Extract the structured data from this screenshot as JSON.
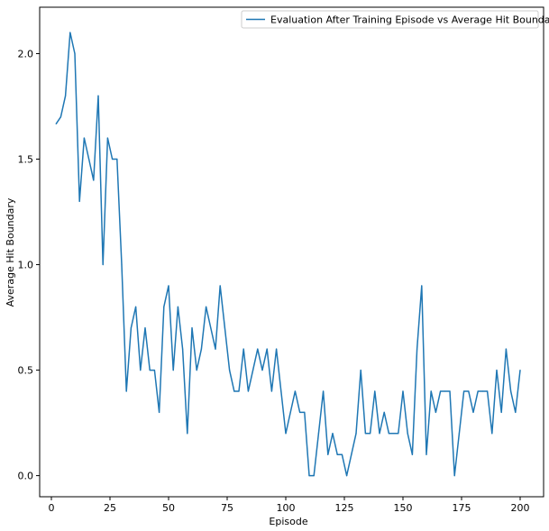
{
  "chart_data": {
    "type": "line",
    "title": "",
    "xlabel": "Episode",
    "ylabel": "Average Hit Boundary",
    "xlim": [
      -5,
      210
    ],
    "ylim": [
      -0.1,
      2.22
    ],
    "xticks": [
      0,
      25,
      50,
      75,
      100,
      125,
      150,
      175,
      200
    ],
    "xtick_labels": [
      "0",
      "25",
      "50",
      "75",
      "100",
      "125",
      "150",
      "175",
      "200"
    ],
    "yticks": [
      0.0,
      0.5,
      1.0,
      1.5,
      2.0
    ],
    "ytick_labels": [
      "0.0",
      "0.5",
      "1.0",
      "1.5",
      "2.0"
    ],
    "grid": false,
    "legend_position": "top-right",
    "series": [
      {
        "name": "Evaluation After Training Episode vs Average Hit Boundary",
        "color": "#1f77b4",
        "x": [
          2,
          4,
          6,
          8,
          10,
          12,
          14,
          16,
          18,
          20,
          22,
          24,
          26,
          28,
          30,
          32,
          34,
          36,
          38,
          40,
          42,
          44,
          46,
          48,
          50,
          52,
          54,
          56,
          58,
          60,
          62,
          64,
          66,
          68,
          70,
          72,
          74,
          76,
          78,
          80,
          82,
          84,
          86,
          88,
          90,
          92,
          94,
          96,
          98,
          100,
          102,
          104,
          106,
          108,
          110,
          112,
          114,
          116,
          118,
          120,
          122,
          124,
          126,
          128,
          130,
          132,
          134,
          136,
          138,
          140,
          142,
          144,
          146,
          148,
          150,
          152,
          154,
          156,
          158,
          160,
          162,
          164,
          166,
          168,
          170,
          172,
          174,
          176,
          178,
          180,
          182,
          184,
          186,
          188,
          190,
          192,
          194,
          196,
          198,
          200
        ],
        "y": [
          1.667,
          1.7,
          1.8,
          2.1,
          2.0,
          1.3,
          1.6,
          1.5,
          1.4,
          1.8,
          1.0,
          1.6,
          1.5,
          1.5,
          1.0,
          0.4,
          0.7,
          0.8,
          0.5,
          0.7,
          0.5,
          0.5,
          0.3,
          0.8,
          0.9,
          0.5,
          0.8,
          0.6,
          0.2,
          0.7,
          0.5,
          0.6,
          0.8,
          0.7,
          0.6,
          0.9,
          0.7,
          0.5,
          0.4,
          0.4,
          0.6,
          0.4,
          0.5,
          0.6,
          0.5,
          0.6,
          0.4,
          0.6,
          0.4,
          0.2,
          0.3,
          0.4,
          0.3,
          0.3,
          0.0,
          0.0,
          0.2,
          0.4,
          0.1,
          0.2,
          0.1,
          0.1,
          0.0,
          0.1,
          0.2,
          0.5,
          0.2,
          0.2,
          0.4,
          0.2,
          0.3,
          0.2,
          0.2,
          0.2,
          0.4,
          0.2,
          0.1,
          0.6,
          0.9,
          0.1,
          0.4,
          0.3,
          0.4,
          0.4,
          0.4,
          0.0,
          0.2,
          0.4,
          0.4,
          0.3,
          0.4,
          0.4,
          0.4,
          0.2,
          0.5,
          0.3,
          0.6,
          0.4,
          0.3,
          0.5
        ]
      }
    ]
  }
}
